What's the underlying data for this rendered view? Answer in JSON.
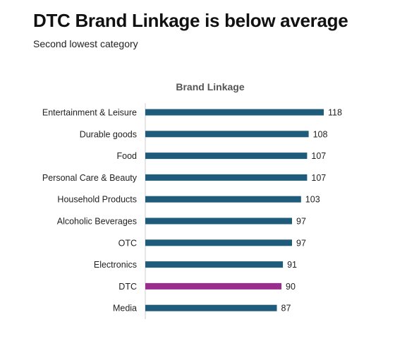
{
  "headline": "DTC Brand Linkage is below average",
  "subtitle": "Second lowest category",
  "colors": {
    "default_bar": "#1f5b7a",
    "highlight_bar": "#9b2d8f",
    "axis": "#cccccc"
  },
  "chart_data": {
    "type": "bar",
    "orientation": "horizontal",
    "title": "Brand Linkage",
    "categories": [
      "Entertainment & Leisure",
      "Durable goods",
      "Food",
      "Personal Care & Beauty",
      "Household Products",
      "Alcoholic Beverages",
      "OTC",
      "Electronics",
      "DTC",
      "Media"
    ],
    "values": [
      118,
      108,
      107,
      107,
      103,
      97,
      97,
      91,
      90,
      87
    ],
    "highlight": "DTC",
    "xlim": [
      0,
      118
    ]
  }
}
